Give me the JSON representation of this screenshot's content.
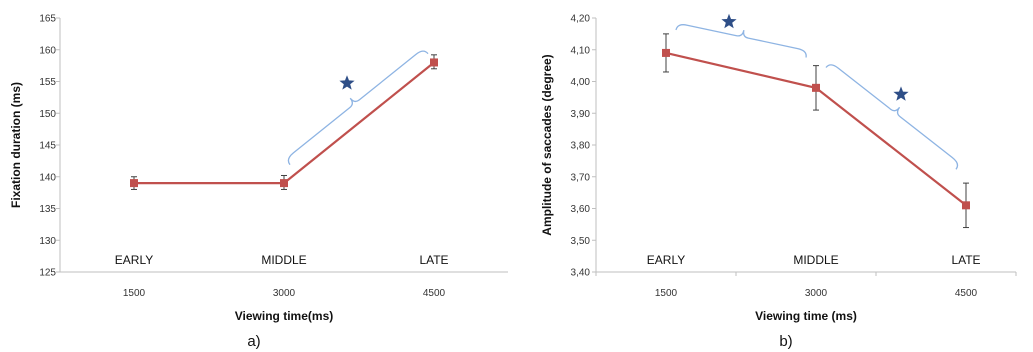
{
  "colors": {
    "series_line": "#c0504d",
    "marker": "#c0504d",
    "error_bar": "#404040",
    "bracket": "#8eb4e3",
    "star": "#2e4e87"
  },
  "chart_data": [
    {
      "type": "line",
      "panel_label": "a)",
      "x": [
        1500,
        3000,
        4500
      ],
      "x_tick_labels": [
        "1500",
        "3000",
        "4500"
      ],
      "phase_labels": [
        "EARLY",
        "MIDDLE",
        "LATE"
      ],
      "values": [
        139,
        139,
        158
      ],
      "error_low": [
        138,
        138,
        157
      ],
      "error_high": [
        140,
        140.2,
        159.2
      ],
      "xlabel": "Viewing time(ms)",
      "ylabel": "Fixation duration (ms)",
      "ylim": [
        125,
        165
      ],
      "y_tick_labels": [
        "125",
        "130",
        "135",
        "140",
        "145",
        "150",
        "155",
        "160",
        "165"
      ],
      "grid": false,
      "annotations": [
        {
          "type": "significance-bracket",
          "from": 3000,
          "to": 4500,
          "marker": "star"
        }
      ]
    },
    {
      "type": "line",
      "panel_label": "b)",
      "x": [
        1500,
        3000,
        4500
      ],
      "x_tick_labels": [
        "1500",
        "3000",
        "4500"
      ],
      "phase_labels": [
        "EARLY",
        "MIDDLE",
        "LATE"
      ],
      "values": [
        4.09,
        3.98,
        3.61
      ],
      "error_low": [
        4.03,
        3.91,
        3.54
      ],
      "error_high": [
        4.15,
        4.05,
        3.68
      ],
      "xlabel": "Viewing time (ms)",
      "ylabel": "Amplitude of saccades (degree)",
      "ylim": [
        3.4,
        4.2
      ],
      "y_tick_labels": [
        "3,40",
        "3,50",
        "3,60",
        "3,70",
        "3,80",
        "3,90",
        "4,00",
        "4,10",
        "4,20"
      ],
      "grid": false,
      "annotations": [
        {
          "type": "significance-bracket",
          "from": 1500,
          "to": 3000,
          "marker": "star"
        },
        {
          "type": "significance-bracket",
          "from": 3000,
          "to": 4500,
          "marker": "star"
        }
      ]
    }
  ]
}
